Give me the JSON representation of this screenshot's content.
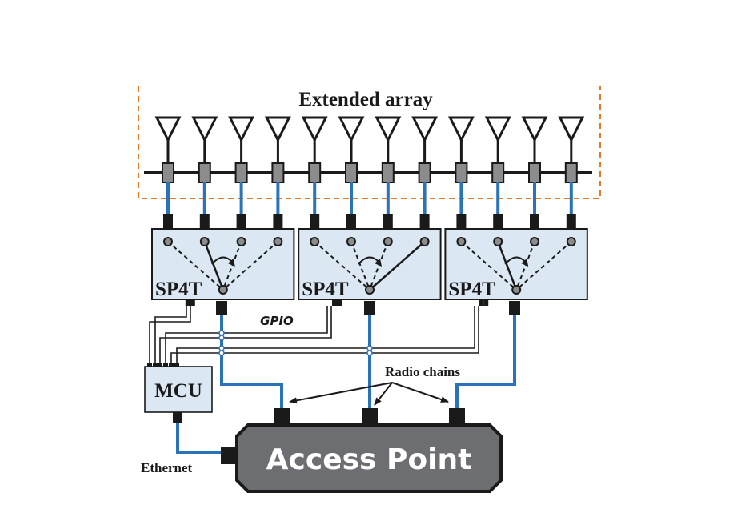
{
  "labels": {
    "extended_array": "Extended array",
    "switch": "SP4T",
    "gpio": "GPIO",
    "radio_chains": "Radio chains",
    "mcu": "MCU",
    "ethernet": "Ethernet",
    "access_point": "Access Point"
  },
  "array": {
    "antenna_count": 12
  },
  "switches": [
    {
      "label": "SP4T",
      "selected_port": 2
    },
    {
      "label": "SP4T",
      "selected_port": 4
    },
    {
      "label": "SP4T",
      "selected_port": 2
    }
  ],
  "colors": {
    "cable": "#2a73b8",
    "box_fill": "#dbe8f4",
    "dashed_border": "#e07b22",
    "ap_fill": "#6d6e71",
    "ap_border": "#1a1a1a",
    "ap_text": "#ffffff",
    "line": "#1a1a1a"
  }
}
